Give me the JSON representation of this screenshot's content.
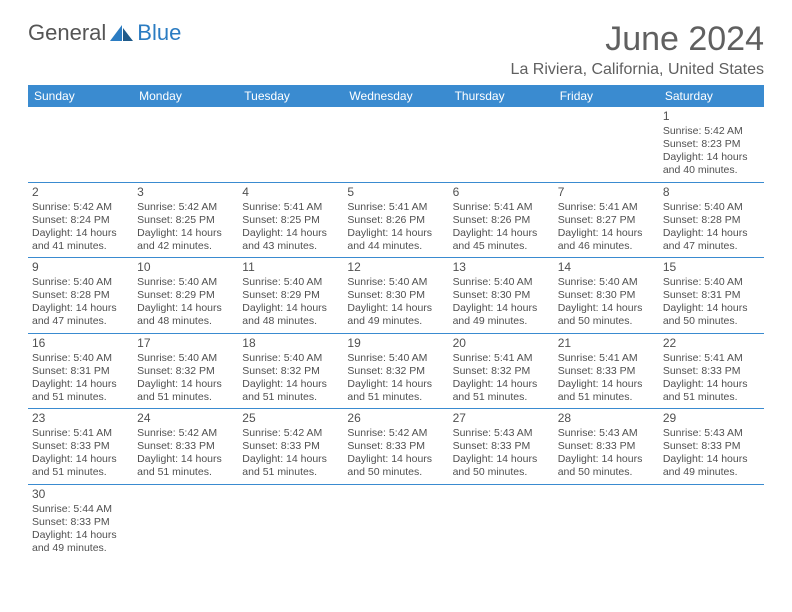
{
  "logo": {
    "part1": "General",
    "part2": "Blue"
  },
  "title": "June 2024",
  "location": "La Riviera, California, United States",
  "colors": {
    "header_bg": "#3a8bd0",
    "header_text": "#ffffff",
    "title_color": "#606060",
    "logo_blue": "#2b7cc2",
    "logo_gray": "#555555",
    "cell_border": "#3a8bd0",
    "cell_text": "#505050"
  },
  "day_headers": [
    "Sunday",
    "Monday",
    "Tuesday",
    "Wednesday",
    "Thursday",
    "Friday",
    "Saturday"
  ],
  "weeks": [
    [
      null,
      null,
      null,
      null,
      null,
      null,
      {
        "d": "1",
        "sr": "5:42 AM",
        "ss": "8:23 PM",
        "dl": "14 hours and 40 minutes."
      }
    ],
    [
      {
        "d": "2",
        "sr": "5:42 AM",
        "ss": "8:24 PM",
        "dl": "14 hours and 41 minutes."
      },
      {
        "d": "3",
        "sr": "5:42 AM",
        "ss": "8:25 PM",
        "dl": "14 hours and 42 minutes."
      },
      {
        "d": "4",
        "sr": "5:41 AM",
        "ss": "8:25 PM",
        "dl": "14 hours and 43 minutes."
      },
      {
        "d": "5",
        "sr": "5:41 AM",
        "ss": "8:26 PM",
        "dl": "14 hours and 44 minutes."
      },
      {
        "d": "6",
        "sr": "5:41 AM",
        "ss": "8:26 PM",
        "dl": "14 hours and 45 minutes."
      },
      {
        "d": "7",
        "sr": "5:41 AM",
        "ss": "8:27 PM",
        "dl": "14 hours and 46 minutes."
      },
      {
        "d": "8",
        "sr": "5:40 AM",
        "ss": "8:28 PM",
        "dl": "14 hours and 47 minutes."
      }
    ],
    [
      {
        "d": "9",
        "sr": "5:40 AM",
        "ss": "8:28 PM",
        "dl": "14 hours and 47 minutes."
      },
      {
        "d": "10",
        "sr": "5:40 AM",
        "ss": "8:29 PM",
        "dl": "14 hours and 48 minutes."
      },
      {
        "d": "11",
        "sr": "5:40 AM",
        "ss": "8:29 PM",
        "dl": "14 hours and 48 minutes."
      },
      {
        "d": "12",
        "sr": "5:40 AM",
        "ss": "8:30 PM",
        "dl": "14 hours and 49 minutes."
      },
      {
        "d": "13",
        "sr": "5:40 AM",
        "ss": "8:30 PM",
        "dl": "14 hours and 49 minutes."
      },
      {
        "d": "14",
        "sr": "5:40 AM",
        "ss": "8:30 PM",
        "dl": "14 hours and 50 minutes."
      },
      {
        "d": "15",
        "sr": "5:40 AM",
        "ss": "8:31 PM",
        "dl": "14 hours and 50 minutes."
      }
    ],
    [
      {
        "d": "16",
        "sr": "5:40 AM",
        "ss": "8:31 PM",
        "dl": "14 hours and 51 minutes."
      },
      {
        "d": "17",
        "sr": "5:40 AM",
        "ss": "8:32 PM",
        "dl": "14 hours and 51 minutes."
      },
      {
        "d": "18",
        "sr": "5:40 AM",
        "ss": "8:32 PM",
        "dl": "14 hours and 51 minutes."
      },
      {
        "d": "19",
        "sr": "5:40 AM",
        "ss": "8:32 PM",
        "dl": "14 hours and 51 minutes."
      },
      {
        "d": "20",
        "sr": "5:41 AM",
        "ss": "8:32 PM",
        "dl": "14 hours and 51 minutes."
      },
      {
        "d": "21",
        "sr": "5:41 AM",
        "ss": "8:33 PM",
        "dl": "14 hours and 51 minutes."
      },
      {
        "d": "22",
        "sr": "5:41 AM",
        "ss": "8:33 PM",
        "dl": "14 hours and 51 minutes."
      }
    ],
    [
      {
        "d": "23",
        "sr": "5:41 AM",
        "ss": "8:33 PM",
        "dl": "14 hours and 51 minutes."
      },
      {
        "d": "24",
        "sr": "5:42 AM",
        "ss": "8:33 PM",
        "dl": "14 hours and 51 minutes."
      },
      {
        "d": "25",
        "sr": "5:42 AM",
        "ss": "8:33 PM",
        "dl": "14 hours and 51 minutes."
      },
      {
        "d": "26",
        "sr": "5:42 AM",
        "ss": "8:33 PM",
        "dl": "14 hours and 50 minutes."
      },
      {
        "d": "27",
        "sr": "5:43 AM",
        "ss": "8:33 PM",
        "dl": "14 hours and 50 minutes."
      },
      {
        "d": "28",
        "sr": "5:43 AM",
        "ss": "8:33 PM",
        "dl": "14 hours and 50 minutes."
      },
      {
        "d": "29",
        "sr": "5:43 AM",
        "ss": "8:33 PM",
        "dl": "14 hours and 49 minutes."
      }
    ],
    [
      {
        "d": "30",
        "sr": "5:44 AM",
        "ss": "8:33 PM",
        "dl": "14 hours and 49 minutes."
      },
      null,
      null,
      null,
      null,
      null,
      null
    ]
  ],
  "labels": {
    "sunrise": "Sunrise: ",
    "sunset": "Sunset: ",
    "daylight": "Daylight: "
  }
}
